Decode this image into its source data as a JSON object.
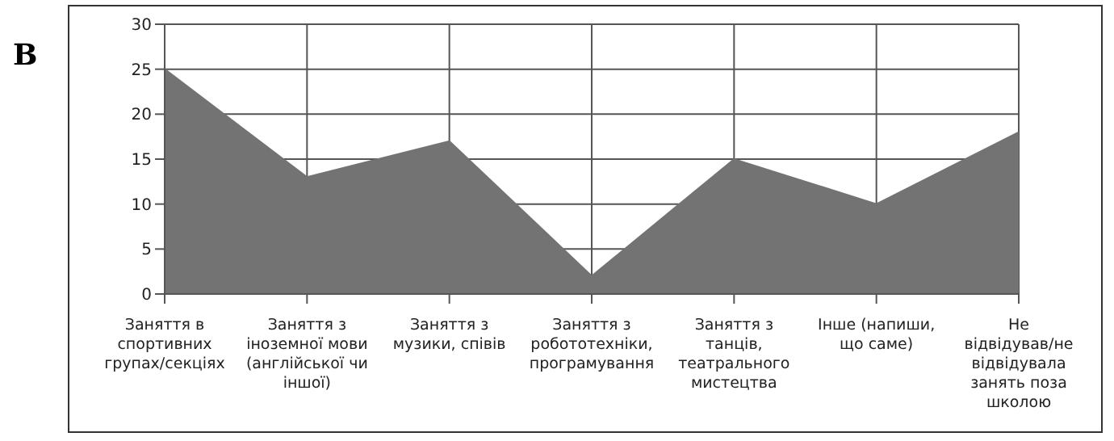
{
  "chart_data": {
    "type": "area",
    "categories": [
      "Заняття в спортивних групах/секціях",
      "Заняття з іноземної мови (англійської чи іншої)",
      "Заняття з музики, співів",
      "Заняття з робототехніки, програмування",
      "Заняття з танців, театрального мистецтва",
      "Інше (напиши, що саме)",
      "Не відвідував/не відвідувала занять поза школою"
    ],
    "values": [
      25,
      13,
      17,
      2,
      15,
      10,
      18
    ],
    "color": "#737373",
    "ylim": [
      0,
      30
    ],
    "yticks": [
      0,
      5,
      10,
      15,
      20,
      25,
      30
    ],
    "grid": true,
    "annotations": [
      "В"
    ]
  }
}
